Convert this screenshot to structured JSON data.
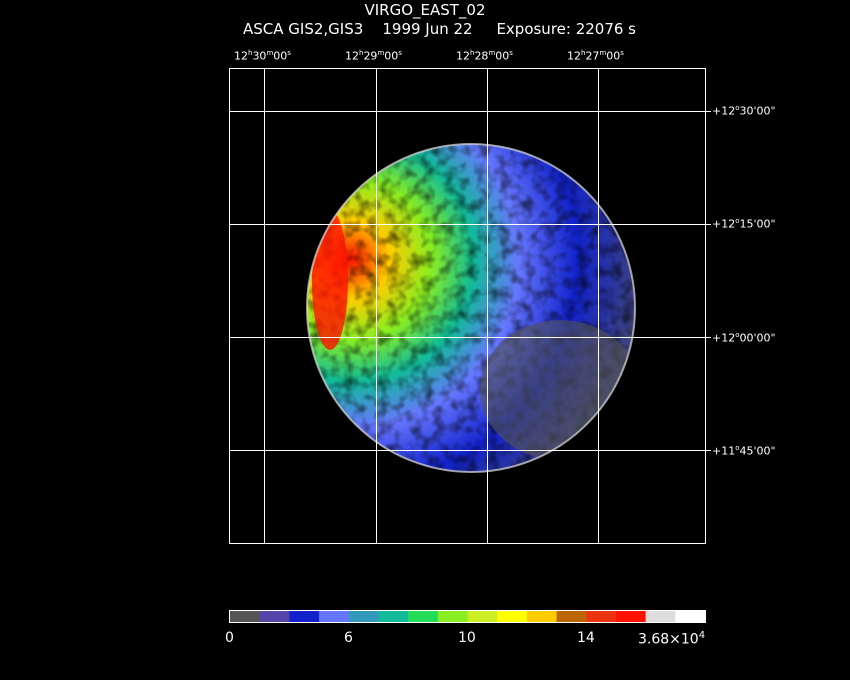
{
  "header": {
    "title": "VIRGO_EAST_02",
    "instrument": "ASCA GIS2,GIS3",
    "date": "1999 Jun 22",
    "exposure": "Exposure: 22076 s"
  },
  "axes": {
    "ra_labels": [
      {
        "h": "12",
        "m": "30",
        "s": "00"
      },
      {
        "h": "12",
        "m": "29",
        "s": "00"
      },
      {
        "h": "12",
        "m": "28",
        "s": "00"
      },
      {
        "h": "12",
        "m": "27",
        "s": "00"
      }
    ],
    "dec_labels": [
      {
        "d": "+12",
        "rest": "30'00\""
      },
      {
        "d": "+12",
        "rest": "15'00\""
      },
      {
        "d": "+12",
        "rest": "00'00\""
      },
      {
        "d": "+11",
        "rest": "45'00\""
      }
    ]
  },
  "colorbar": {
    "colors": [
      "#555555",
      "#5544aa",
      "#1122cc",
      "#6677ff",
      "#3399bb",
      "#11bb99",
      "#22dd55",
      "#88ee22",
      "#ccee22",
      "#ffff00",
      "#ffcc00",
      "#bb6600",
      "#ee3311",
      "#ff1100",
      "#dddddd",
      "#ffffff"
    ],
    "tick_labels": [
      "0",
      "6",
      "10",
      "14",
      "3.68×10"
    ],
    "max_exponent": "4"
  }
}
